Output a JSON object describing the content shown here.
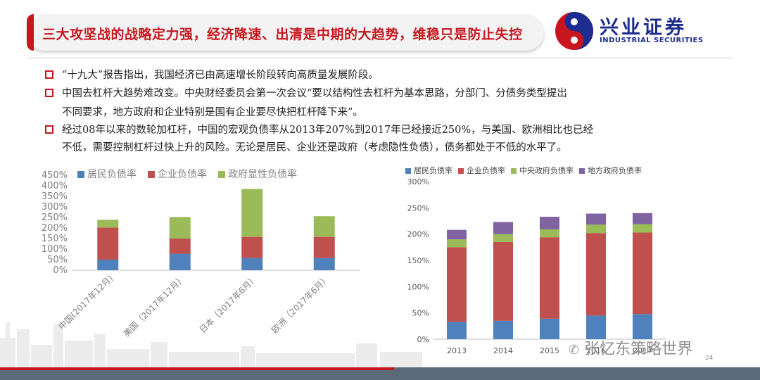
{
  "title": "三大攻坚战的战略定力强，经济降速、出清是中期的大趋势，维稳只是防止失控",
  "brand": {
    "name_cn": "兴业证券",
    "name_en": "INDUSTRIAL SECURITIES"
  },
  "bullets": [
    {
      "lines": [
        "“十九大”报告指出，我国经济已由高速增长阶段转向高质量发展阶段。"
      ]
    },
    {
      "lines": [
        "中国去杠杆大趋势难改变。中央财经委员会第一次会议“要以结构性去杠杆为基本思路，分部门、分债务类型提出",
        "不同要求，地方政府和企业特别是国有企业要尽快把杠杆降下来”。"
      ]
    },
    {
      "lines": [
        "经过08年以来的数轮加杠杆，中国的宏观负债率从2013年207%到2017年已经接近250%，与美国、欧洲相比也已经",
        "不低，需要控制杠杆过快上升的风险。无论是居民、企业还是政府（考虑隐性负债），债务都处于不低的水平了。"
      ]
    }
  ],
  "chart_data": [
    {
      "type": "bar",
      "stacked": true,
      "categories": [
        "中国(2017年12月)",
        "美国（2017年12月）",
        "日本（2017年6月）",
        "欧洲（2017年6月）"
      ],
      "series": [
        {
          "name": "居民负债率",
          "color": "#4f81bd",
          "values": [
            50,
            78,
            58,
            58
          ]
        },
        {
          "name": "企业负债率",
          "color": "#c0504d",
          "values": [
            152,
            72,
            100,
            100
          ]
        },
        {
          "name": "政府显性负债率",
          "color": "#9bbb59",
          "values": [
            37,
            102,
            227,
            98
          ]
        }
      ],
      "ylim": [
        0,
        450
      ],
      "yticks": [
        "0%",
        "50%",
        "100%",
        "150%",
        "200%",
        "250%",
        "300%",
        "350%",
        "400%",
        "450%"
      ],
      "grid": false,
      "legend": "top"
    },
    {
      "type": "bar",
      "stacked": true,
      "categories": [
        "2013",
        "2014",
        "2015",
        "2016",
        "2017"
      ],
      "series": [
        {
          "name": "居民负债率",
          "color": "#4f81bd",
          "values": [
            33,
            35,
            39,
            45,
            48
          ]
        },
        {
          "name": "企业负债率",
          "color": "#c0504d",
          "values": [
            142,
            150,
            155,
            157,
            155
          ]
        },
        {
          "name": "中央政府负债率",
          "color": "#9bbb59",
          "values": [
            15,
            15,
            15,
            16,
            16
          ]
        },
        {
          "name": "地方政府负债率",
          "color": "#8064a2",
          "values": [
            18,
            23,
            24,
            21,
            21
          ]
        }
      ],
      "ylim": [
        0,
        300
      ],
      "yticks": [
        "0%",
        "50%",
        "100%",
        "150%",
        "200%",
        "250%",
        "300%"
      ],
      "grid": false,
      "legend": "top"
    }
  ],
  "watermark": "张忆东策略世界",
  "page_number": "24"
}
